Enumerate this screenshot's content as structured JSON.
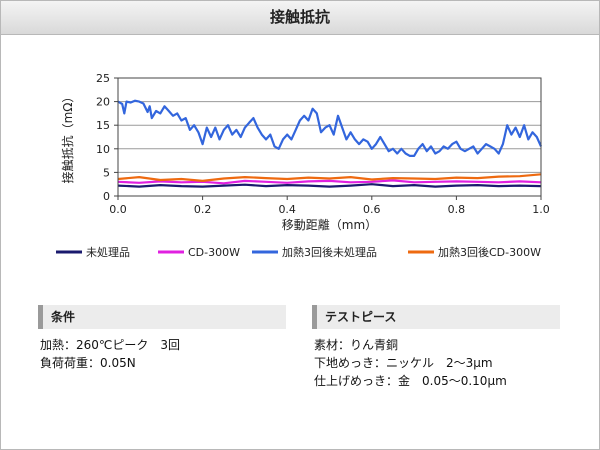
{
  "page": {
    "title": "接触抵抗"
  },
  "chart_data": {
    "type": "line",
    "ylabel": "接触抵抗（mΩ）",
    "xlabel": "移動距離（mm）",
    "xlim": [
      0,
      1.0
    ],
    "ylim": [
      0,
      25
    ],
    "x_ticks": [
      "0.0",
      "0.2",
      "0.4",
      "0.6",
      "0.8",
      "1.0"
    ],
    "y_ticks": [
      "0",
      "5",
      "10",
      "15",
      "20",
      "25"
    ],
    "grid": "horizontal",
    "legend_position": "bottom",
    "series": [
      {
        "name": "未処理品",
        "color": "#1a1a6e",
        "x": [
          0.0,
          0.05,
          0.1,
          0.15,
          0.2,
          0.25,
          0.3,
          0.35,
          0.4,
          0.45,
          0.5,
          0.55,
          0.6,
          0.65,
          0.7,
          0.75,
          0.8,
          0.85,
          0.9,
          0.95,
          1.0
        ],
        "y": [
          2.2,
          2.0,
          2.3,
          2.1,
          2.0,
          2.2,
          2.4,
          2.1,
          2.3,
          2.2,
          2.0,
          2.2,
          2.5,
          2.1,
          2.3,
          2.0,
          2.2,
          2.3,
          2.1,
          2.2,
          2.1
        ]
      },
      {
        "name": "CD-300W",
        "color": "#e020e0",
        "x": [
          0.0,
          0.05,
          0.1,
          0.15,
          0.2,
          0.25,
          0.3,
          0.35,
          0.4,
          0.45,
          0.5,
          0.55,
          0.6,
          0.65,
          0.7,
          0.75,
          0.8,
          0.85,
          0.9,
          0.95,
          1.0
        ],
        "y": [
          3.0,
          2.8,
          3.1,
          2.9,
          3.0,
          2.7,
          3.2,
          3.0,
          2.8,
          3.1,
          3.2,
          2.9,
          3.0,
          3.3,
          2.9,
          3.0,
          3.1,
          3.0,
          2.9,
          3.1,
          2.9
        ]
      },
      {
        "name": "加熱3回後未処理品",
        "color": "#3366dd",
        "x": [
          0.0,
          0.01,
          0.015,
          0.02,
          0.03,
          0.04,
          0.05,
          0.06,
          0.07,
          0.075,
          0.08,
          0.09,
          0.1,
          0.11,
          0.12,
          0.13,
          0.14,
          0.15,
          0.16,
          0.17,
          0.18,
          0.19,
          0.2,
          0.21,
          0.22,
          0.23,
          0.24,
          0.25,
          0.26,
          0.27,
          0.28,
          0.29,
          0.3,
          0.31,
          0.32,
          0.33,
          0.34,
          0.35,
          0.36,
          0.37,
          0.38,
          0.39,
          0.4,
          0.41,
          0.42,
          0.43,
          0.44,
          0.45,
          0.46,
          0.47,
          0.48,
          0.49,
          0.5,
          0.51,
          0.52,
          0.53,
          0.54,
          0.55,
          0.56,
          0.57,
          0.58,
          0.59,
          0.6,
          0.61,
          0.62,
          0.63,
          0.64,
          0.65,
          0.66,
          0.67,
          0.68,
          0.69,
          0.7,
          0.71,
          0.72,
          0.73,
          0.74,
          0.75,
          0.76,
          0.77,
          0.78,
          0.79,
          0.8,
          0.81,
          0.82,
          0.83,
          0.84,
          0.85,
          0.86,
          0.87,
          0.88,
          0.89,
          0.9,
          0.91,
          0.92,
          0.93,
          0.94,
          0.95,
          0.96,
          0.97,
          0.98,
          0.99,
          1.0
        ],
        "y": [
          20.0,
          19.5,
          17.5,
          20.0,
          19.8,
          20.2,
          20.0,
          19.6,
          17.8,
          19.0,
          16.5,
          18.0,
          17.5,
          19.0,
          18.0,
          17.0,
          17.5,
          16.0,
          16.5,
          14.0,
          15.0,
          13.5,
          11.0,
          14.5,
          12.5,
          14.5,
          12.0,
          14.0,
          15.0,
          13.0,
          14.0,
          12.5,
          14.5,
          15.5,
          16.5,
          14.5,
          13.0,
          12.0,
          13.0,
          10.5,
          10.0,
          12.0,
          13.0,
          12.0,
          14.0,
          16.0,
          17.0,
          16.0,
          18.5,
          17.5,
          13.5,
          14.5,
          15.0,
          13.0,
          17.0,
          14.5,
          12.0,
          13.5,
          12.0,
          11.0,
          12.0,
          11.5,
          10.0,
          11.0,
          12.5,
          11.0,
          9.5,
          10.0,
          9.0,
          10.0,
          9.0,
          8.5,
          8.5,
          10.0,
          11.0,
          9.5,
          10.5,
          9.0,
          9.5,
          10.5,
          10.0,
          11.0,
          11.5,
          10.0,
          9.5,
          10.0,
          10.5,
          9.0,
          10.0,
          11.0,
          10.5,
          10.0,
          9.0,
          11.0,
          15.0,
          13.0,
          14.5,
          12.5,
          15.0,
          12.0,
          13.5,
          12.5,
          10.5
        ]
      },
      {
        "name": "加熱3回後CD-300W",
        "color": "#ee6a10",
        "x": [
          0.0,
          0.05,
          0.1,
          0.15,
          0.2,
          0.25,
          0.3,
          0.35,
          0.4,
          0.45,
          0.5,
          0.55,
          0.6,
          0.65,
          0.7,
          0.75,
          0.8,
          0.85,
          0.9,
          0.95,
          1.0
        ],
        "y": [
          3.6,
          4.0,
          3.4,
          3.6,
          3.2,
          3.7,
          4.0,
          3.8,
          3.6,
          3.9,
          3.7,
          4.0,
          3.5,
          3.8,
          3.7,
          3.6,
          3.9,
          3.8,
          4.1,
          4.2,
          4.6
        ]
      }
    ]
  },
  "conditions": {
    "heading": "条件",
    "lines": [
      "加熱：260℃ピーク　3回",
      "負荷荷重：0.05N"
    ]
  },
  "test_piece": {
    "heading": "テストピース",
    "lines": [
      "素材：りん青銅",
      "下地めっき：ニッケル　2～3μm",
      "仕上げめっき：金　0.05～0.10μm"
    ]
  }
}
